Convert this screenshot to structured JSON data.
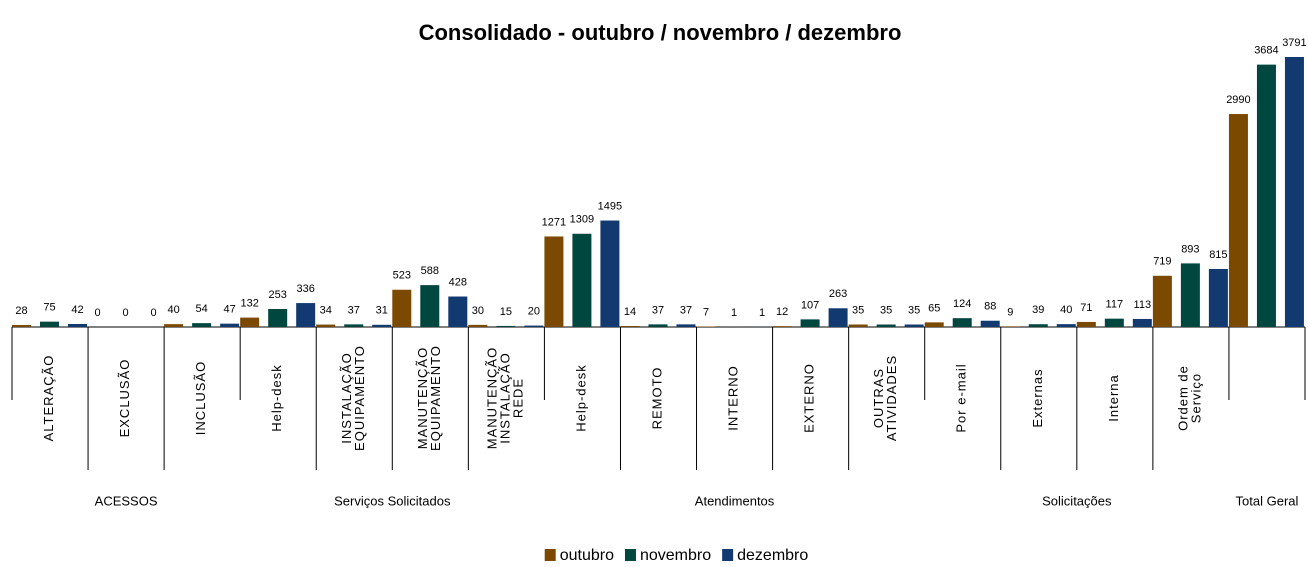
{
  "chart_data": {
    "type": "bar",
    "title": "Consolidado - outubro / novembro / dezembro",
    "groups": [
      {
        "name": "ACESSOS",
        "categories": [
          "ALTERAÇÃO",
          "EXCLUSÃO",
          "INCLUSÃO"
        ]
      },
      {
        "name": "Serviços Solicitados",
        "categories": [
          "Help-desk",
          "INSTALAÇÃO\nEQUIPAMENTO",
          "MANUTENÇÃO\nEQUIPAMENTO",
          "MANUTENÇÃO\nINSTALAÇÃO\nREDE"
        ]
      },
      {
        "name": "Atendimentos",
        "categories": [
          "Help-desk",
          "REMOTO",
          "INTERNO",
          "EXTERNO",
          "OUTRAS\nATIVIDADES"
        ]
      },
      {
        "name": "Solicitações",
        "categories": [
          "Por e-mail",
          "Externas",
          "Interna",
          "Ordem de\nServiço"
        ]
      },
      {
        "name": "Total Geral",
        "categories": [
          null
        ]
      }
    ],
    "series": [
      {
        "name": "outubro",
        "color": "#7b4a00",
        "values": [
          28,
          0,
          40,
          132,
          34,
          523,
          30,
          1271,
          14,
          7,
          12,
          35,
          65,
          9,
          71,
          719,
          2990
        ]
      },
      {
        "name": "novembro",
        "color": "#00473f",
        "values": [
          75,
          0,
          54,
          253,
          37,
          588,
          15,
          1309,
          37,
          1,
          107,
          35,
          124,
          39,
          117,
          893,
          3684
        ]
      },
      {
        "name": "dezembro",
        "color": "#123a70",
        "values": [
          42,
          0,
          47,
          336,
          31,
          428,
          20,
          1495,
          37,
          1,
          263,
          35,
          88,
          40,
          113,
          815,
          3791
        ]
      }
    ],
    "legend": "bottom"
  }
}
